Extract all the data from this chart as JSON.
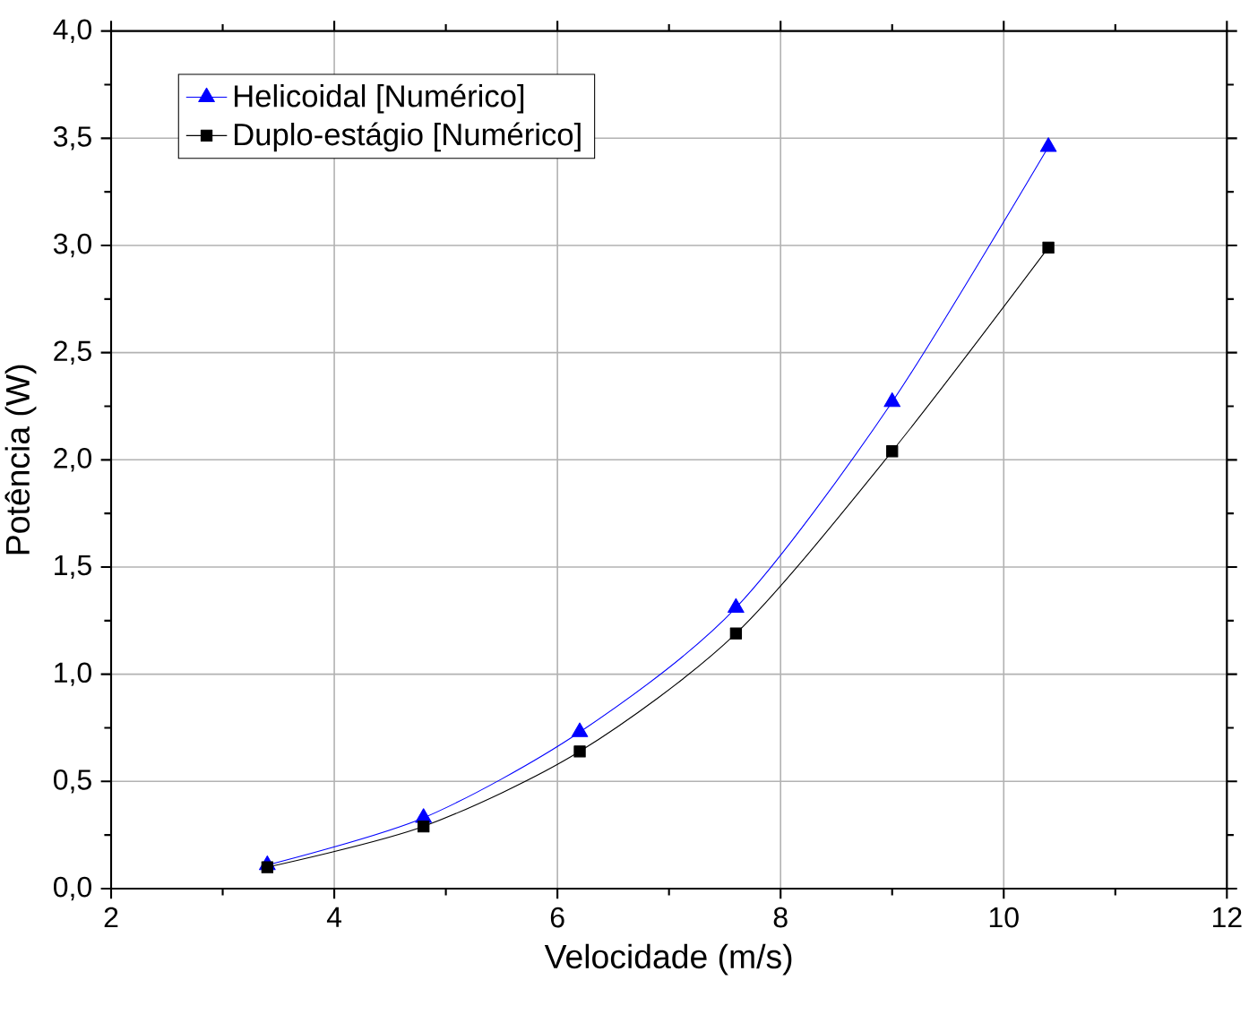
{
  "chart_data": {
    "type": "line",
    "xlabel": "Velocidade (m/s)",
    "ylabel": "Potência (W)",
    "x": [
      3.4,
      4.8,
      6.2,
      7.6,
      9.0,
      10.4
    ],
    "series": [
      {
        "name": "Helicoidal [Numérico]",
        "color": "#0000ff",
        "marker": "triangle",
        "values": [
          0.11,
          0.33,
          0.73,
          1.31,
          2.27,
          3.46
        ]
      },
      {
        "name": "Duplo-estágio [Numérico]",
        "color": "#000000",
        "marker": "square",
        "values": [
          0.1,
          0.29,
          0.64,
          1.19,
          2.04,
          2.99
        ]
      }
    ],
    "xlim": [
      2,
      12
    ],
    "xticks": [
      2,
      4,
      6,
      8,
      10,
      12
    ],
    "ylim": [
      0,
      4
    ],
    "yticks": [
      {
        "value": 0,
        "label": "0,0"
      },
      {
        "value": 0.5,
        "label": "0,5"
      },
      {
        "value": 1,
        "label": "1,0"
      },
      {
        "value": 1.5,
        "label": "1,5"
      },
      {
        "value": 2,
        "label": "2,0"
      },
      {
        "value": 2.5,
        "label": "2,5"
      },
      {
        "value": 3,
        "label": "3,0"
      },
      {
        "value": 3.5,
        "label": "3,5"
      },
      {
        "value": 4,
        "label": "4,0"
      }
    ],
    "grid": true,
    "legend": "top left",
    "line_style": "solid"
  }
}
